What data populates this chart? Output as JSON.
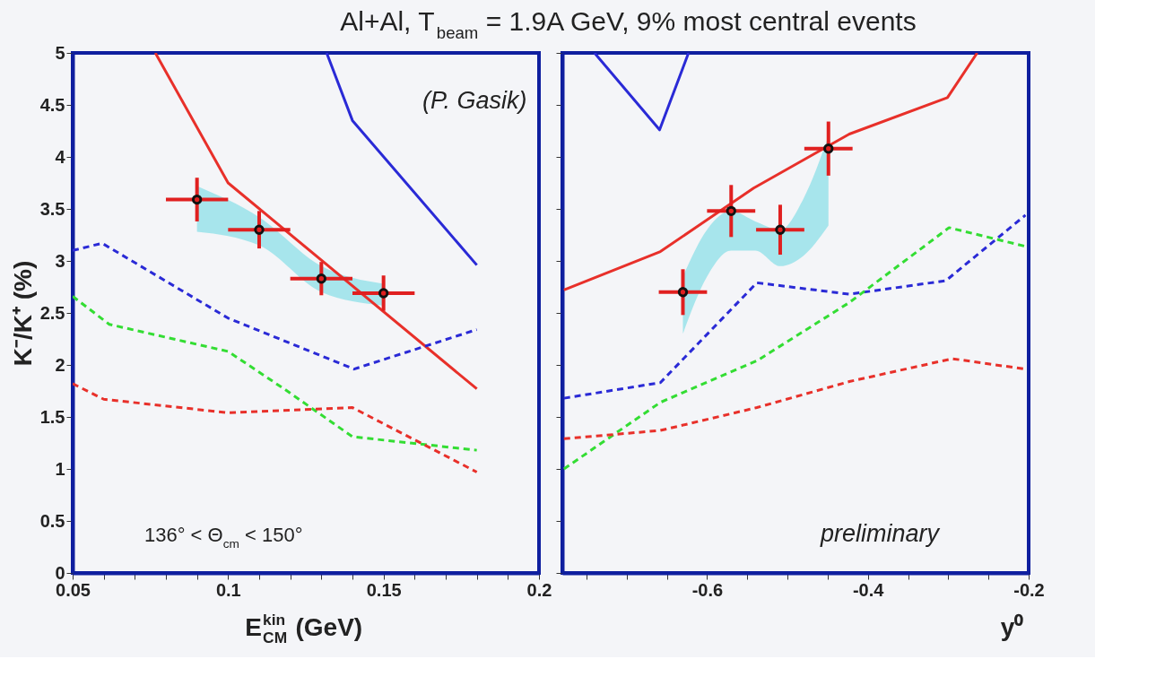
{
  "chart_data": [
    {
      "type": "line",
      "title": "Al+Al, T$_{beam}$ = 1.9A GeV,   9% most central events",
      "xlabel": "E$^{kin}$$_{CM}$ (GeV)",
      "ylabel": "K⁻/K⁺ (%)",
      "xlim": [
        0.05,
        0.2
      ],
      "ylim": [
        0,
        5
      ],
      "xticks": [
        0.05,
        {
          "value": 0.06,
          "label": null
        },
        {
          "value": 0.07,
          "label": null
        },
        {
          "value": 0.08,
          "label": null
        },
        {
          "value": 0.09,
          "label": null
        },
        0.1,
        {
          "value": 0.11,
          "label": null
        },
        {
          "value": 0.12,
          "label": null
        },
        {
          "value": 0.13,
          "label": null
        },
        {
          "value": 0.14,
          "label": null
        },
        0.15,
        {
          "value": 0.16,
          "label": null
        },
        {
          "value": 0.17,
          "label": null
        },
        {
          "value": 0.18,
          "label": null
        },
        {
          "value": 0.19,
          "label": null
        },
        0.2
      ],
      "yticks": [
        0,
        0.5,
        1,
        1.5,
        2,
        2.5,
        3,
        3.5,
        4,
        4.5,
        5
      ],
      "grid": false,
      "annotations": [
        "(P. Gasik)",
        "136° < Θ$_{cm}$ < 150°"
      ],
      "series": [
        {
          "type": "area",
          "color": "#9fe3ea",
          "x": [
            0.09,
            0.11,
            0.13,
            0.15
          ],
          "values": [
            null,
            null,
            null,
            null
          ],
          "lower": [
            3.28,
            3.15,
            2.7,
            2.57
          ],
          "upper": [
            3.72,
            3.42,
            2.95,
            2.78
          ]
        },
        {
          "line_style": "solid",
          "color": "#e8302a",
          "x": [
            0.0766,
            0.1,
            0.18
          ],
          "values": [
            5,
            3.75,
            1.77
          ]
        },
        {
          "line_style": "solid",
          "color": "#2a2ad6",
          "x": [
            0.1317,
            0.14,
            0.18
          ],
          "values": [
            5,
            4.35,
            2.96
          ]
        },
        {
          "line_style": "dashed",
          "color": "#2a2ad6",
          "x": [
            0.05,
            0.0595,
            0.1,
            0.1405,
            0.18
          ],
          "values": [
            3.1,
            3.17,
            2.45,
            1.96,
            2.34
          ]
        },
        {
          "line_style": "dashed",
          "color": "#33dd33",
          "x": [
            0.05,
            0.0618,
            0.1,
            0.118,
            0.14,
            0.18
          ],
          "values": [
            2.66,
            2.39,
            2.13,
            1.77,
            1.31,
            1.18
          ]
        },
        {
          "line_style": "dashed",
          "color": "#e8302a",
          "x": [
            0.05,
            0.06,
            0.1,
            0.14,
            0.18
          ],
          "values": [
            1.82,
            1.67,
            1.54,
            1.59,
            0.97
          ]
        },
        {
          "type": "scatter",
          "marker": "circle",
          "color": "#e02020",
          "x": [
            0.09,
            0.11,
            0.13,
            0.15
          ],
          "values": [
            3.59,
            3.3,
            2.83,
            2.69
          ],
          "errors": [
            0.21,
            0.18,
            0.16,
            0.17
          ],
          "xerrors": [
            0.01,
            0.01,
            0.01,
            0.01
          ]
        }
      ]
    },
    {
      "type": "line",
      "xlabel": "y⁰",
      "xlim": [
        -0.78,
        -0.2
      ],
      "ylim": [
        0,
        5
      ],
      "tick_labels": "x",
      "xticks": [
        {
          "value": -0.75,
          "label": null
        },
        {
          "value": -0.7,
          "label": null
        },
        {
          "value": -0.65,
          "label": null
        },
        -0.6,
        {
          "value": -0.55,
          "label": null
        },
        {
          "value": -0.5,
          "label": null
        },
        {
          "value": -0.45,
          "label": null
        },
        -0.4,
        {
          "value": -0.35,
          "label": null
        },
        {
          "value": -0.3,
          "label": null
        },
        {
          "value": -0.25,
          "label": null
        },
        -0.2
      ],
      "yticks": [
        0,
        0.5,
        1,
        1.5,
        2,
        2.5,
        3,
        3.5,
        4,
        4.5,
        5
      ],
      "grid": false,
      "annotations": [
        "preliminary"
      ],
      "series": [
        {
          "type": "area",
          "color": "#9fe3ea",
          "x": [
            -0.63,
            -0.6,
            -0.57,
            -0.54,
            -0.509,
            -0.48,
            -0.449
          ],
          "values": [
            null,
            null,
            null,
            null,
            null,
            null,
            null
          ],
          "lower": [
            2.3,
            2.85,
            3.1,
            3.1,
            2.95,
            3.05,
            3.34
          ],
          "upper": [
            2.85,
            3.3,
            3.48,
            3.38,
            3.3,
            3.6,
            4.2
          ]
        },
        {
          "line_style": "solid",
          "color": "#e8302a",
          "x": [
            -0.778,
            -0.658,
            -0.542,
            -0.423,
            -0.301,
            -0.264
          ],
          "values": [
            2.72,
            3.09,
            3.7,
            4.22,
            4.57,
            5
          ]
        },
        {
          "line_style": "solid",
          "color": "#2a2ad6",
          "x": [
            -0.74,
            -0.659,
            -0.623
          ],
          "values": [
            5,
            4.26,
            5
          ]
        },
        {
          "line_style": "dashed",
          "color": "#2a2ad6",
          "x": [
            -0.778,
            -0.658,
            -0.538,
            -0.423,
            -0.303,
            -0.204
          ],
          "values": [
            1.68,
            1.83,
            2.79,
            2.68,
            2.81,
            3.44
          ]
        },
        {
          "line_style": "dashed",
          "color": "#33dd33",
          "x": [
            -0.778,
            -0.658,
            -0.538,
            -0.423,
            -0.299,
            -0.204
          ],
          "values": [
            1.0,
            1.64,
            2.04,
            2.6,
            3.32,
            3.14
          ]
        },
        {
          "line_style": "dashed",
          "color": "#e8302a",
          "x": [
            -0.778,
            -0.658,
            -0.538,
            -0.423,
            -0.295,
            -0.204
          ],
          "values": [
            1.29,
            1.37,
            1.59,
            1.84,
            2.06,
            1.96
          ]
        },
        {
          "type": "scatter",
          "marker": "circle",
          "color": "#e02020",
          "x": [
            -0.63,
            -0.57,
            -0.509,
            -0.449
          ],
          "values": [
            2.7,
            3.48,
            3.3,
            4.08
          ],
          "errors": [
            0.22,
            0.25,
            0.24,
            0.26
          ],
          "xerrors": [
            0.03,
            0.03,
            0.03,
            0.03
          ]
        }
      ]
    }
  ]
}
